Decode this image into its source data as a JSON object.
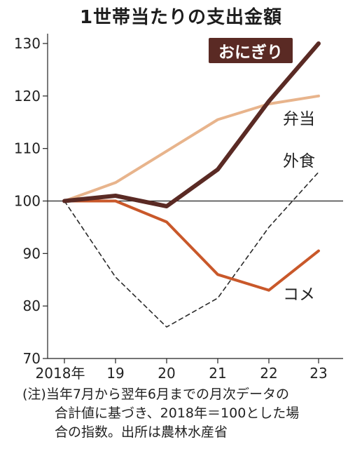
{
  "chart_data": {
    "type": "line",
    "title": "1世帯当たりの支出金額",
    "categories": [
      "2018年",
      "19",
      "20",
      "21",
      "22",
      "23"
    ],
    "ylim": [
      70,
      130
    ],
    "yticks": [
      70,
      80,
      90,
      100,
      110,
      120,
      130
    ],
    "reference_line": 100,
    "grid": false,
    "series": [
      {
        "name": "おにぎり",
        "values": [
          100,
          101,
          99,
          106,
          119,
          130
        ],
        "color": "#5a2a24",
        "style": "solid-thick",
        "label_style": "boxed"
      },
      {
        "name": "弁当",
        "values": [
          100,
          103.5,
          109.5,
          115.5,
          118.5,
          120
        ],
        "color": "#e8b48c",
        "style": "solid"
      },
      {
        "name": "外食",
        "values": [
          100,
          85.5,
          76,
          81.5,
          95,
          105.5
        ],
        "color": "#2a2a2a",
        "style": "dashed"
      },
      {
        "name": "コメ",
        "values": [
          100,
          100,
          96,
          86,
          83,
          90.5
        ],
        "color": "#c9582a",
        "style": "solid"
      }
    ]
  },
  "footnote": [
    "(注)当年7月から翌年6月までの月次データの",
    "合計値に基づき、2018年＝100とした場",
    "合の指数。出所は農林水産省"
  ]
}
